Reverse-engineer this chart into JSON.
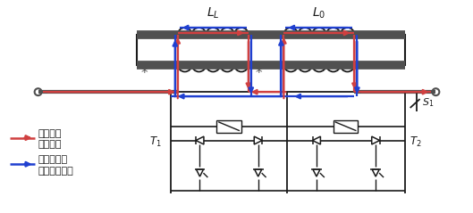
{
  "fig_width": 5.29,
  "fig_height": 2.39,
  "dpi": 100,
  "bg_color": "#ffffff",
  "red_color": "#d04040",
  "blue_color": "#2040d0",
  "black_color": "#1a1a1a",
  "gray_color": "#888888",
  "dark_gray": "#505050",
  "legend_red_label1": "故障线路",
  "legend_red_label2": "电流路径",
  "legend_blue_label1": "非故障线路",
  "legend_blue_label2": "电流馈入路径",
  "label_LL": "$L_L$",
  "label_L0": "$L_0$",
  "label_S1": "$S_1$",
  "label_T1": "$T_1$",
  "label_T2": "$T_2$",
  "label_star": "*"
}
